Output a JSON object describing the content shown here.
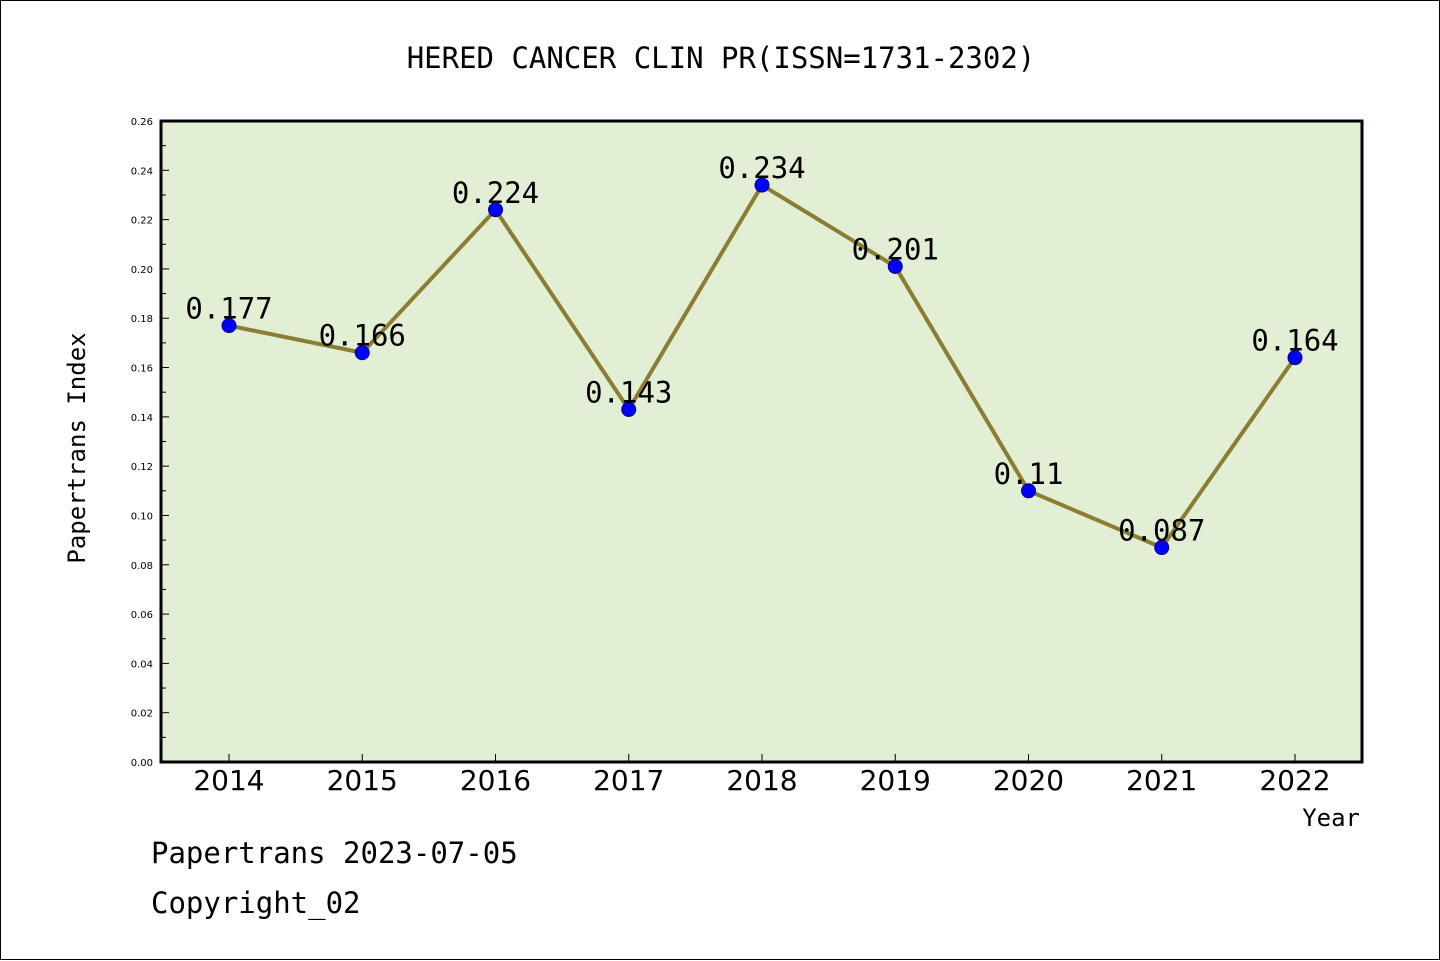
{
  "chart_data": {
    "type": "line",
    "title": "HERED CANCER CLIN PR(ISSN=1731-2302)",
    "xlabel": "Year",
    "ylabel": "Papertrans Index",
    "categories": [
      "2014",
      "2015",
      "2016",
      "2017",
      "2018",
      "2019",
      "2020",
      "2021",
      "2022"
    ],
    "series": [
      {
        "values": [
          0.177,
          0.166,
          0.224,
          0.143,
          0.234,
          0.201,
          0.11,
          0.087,
          0.164
        ],
        "labels": [
          "0.177",
          "0.166",
          "0.224",
          "0.143",
          "0.234",
          "0.201",
          "0.11",
          "0.087",
          "0.164"
        ]
      }
    ],
    "ylim": [
      0,
      0.26
    ],
    "yticks": [
      "0.00",
      "0.02",
      "0.04",
      "0.06",
      "0.08",
      "0.10",
      "0.12",
      "0.14",
      "0.16",
      "0.18",
      "0.20",
      "0.22",
      "0.24",
      "0.26"
    ],
    "grid": false,
    "colors": {
      "plot_background": "#e2efd5",
      "line": "#8b7d32",
      "marker": "#0000ff"
    }
  },
  "footer": {
    "line1": "Papertrans 2023-07-05",
    "line2": "Copyright_02"
  }
}
